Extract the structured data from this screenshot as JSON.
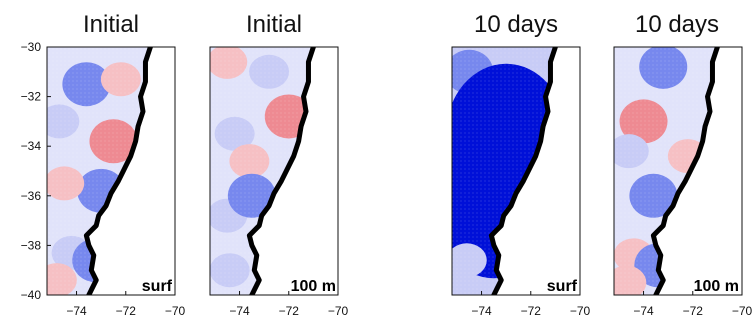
{
  "chart_data": [
    {
      "type": "heatmap",
      "title": "Initial",
      "corner_label": "surf",
      "x_ticks": [
        -74,
        -72,
        -70
      ],
      "y_ticks": [
        -30,
        -32,
        -34,
        -36,
        -38,
        -40
      ],
      "xlim": [
        -75.2,
        -70
      ],
      "ylim": [
        -40,
        -30
      ],
      "colors": {
        "strong_blue": "#0010d8",
        "mid_blue": "#7788ee",
        "light_blue": "#c8ccf6",
        "light_red": "#f6c0c4",
        "mid_red": "#ee8a92",
        "background": "#ffffff",
        "coastline": "#000000"
      },
      "anomaly_regions": [
        {
          "lon": -73.6,
          "lat": -31.5,
          "level": -2
        },
        {
          "lon": -74.7,
          "lat": -33.0,
          "level": -1
        },
        {
          "lon": -72.5,
          "lat": -33.8,
          "level": 2
        },
        {
          "lon": -72.2,
          "lat": -31.3,
          "level": 1
        },
        {
          "lon": -73.0,
          "lat": -35.8,
          "level": -2
        },
        {
          "lon": -74.5,
          "lat": -35.5,
          "level": 1
        },
        {
          "lon": -74.2,
          "lat": -38.3,
          "level": -1
        },
        {
          "lon": -74.8,
          "lat": -39.4,
          "level": 1
        },
        {
          "lon": -73.2,
          "lat": -38.6,
          "level": -2
        }
      ]
    },
    {
      "type": "heatmap",
      "title": "Initial",
      "corner_label": "100 m",
      "x_ticks": [
        -74,
        -72,
        -70
      ],
      "y_ticks": [
        -30,
        -32,
        -34,
        -36,
        -38,
        -40
      ],
      "xlim": [
        -75.2,
        -70
      ],
      "ylim": [
        -40,
        -30
      ],
      "colors": {
        "strong_blue": "#0010d8",
        "mid_blue": "#7788ee",
        "light_blue": "#c8ccf6",
        "light_red": "#f6c0c4",
        "mid_red": "#ee8a92",
        "background": "#ffffff",
        "coastline": "#000000"
      },
      "anomaly_regions": [
        {
          "lon": -74.5,
          "lat": -30.6,
          "level": 1
        },
        {
          "lon": -72.8,
          "lat": -31.0,
          "level": -1
        },
        {
          "lon": -72.0,
          "lat": -32.8,
          "level": 2
        },
        {
          "lon": -74.2,
          "lat": -33.5,
          "level": -1
        },
        {
          "lon": -73.6,
          "lat": -34.6,
          "level": 1
        },
        {
          "lon": -74.5,
          "lat": -36.8,
          "level": -1
        },
        {
          "lon": -73.5,
          "lat": -36.0,
          "level": -2
        },
        {
          "lon": -74.4,
          "lat": -39.0,
          "level": -1
        }
      ]
    },
    {
      "type": "heatmap",
      "title": "10 days",
      "corner_label": "surf",
      "x_ticks": [
        -74,
        -72,
        -70
      ],
      "y_ticks": [
        -30,
        -32,
        -34,
        -36,
        -38,
        -40
      ],
      "xlim": [
        -75.2,
        -70
      ],
      "ylim": [
        -40,
        -30
      ],
      "colors": {
        "strong_blue": "#0010d8",
        "mid_blue": "#7788ee",
        "light_blue": "#c8ccf6",
        "light_red": "#f6c0c4",
        "mid_red": "#ee8a92",
        "background": "#ffffff",
        "coastline": "#000000"
      },
      "anomaly_regions": [
        {
          "lon": -74.5,
          "lat": -31.0,
          "level": -2
        },
        {
          "lon": -73.0,
          "lat": -33.5,
          "level": -3
        },
        {
          "lon": -73.5,
          "lat": -36.5,
          "level": -3
        },
        {
          "lon": -74.6,
          "lat": -38.6,
          "level": -1
        }
      ]
    },
    {
      "type": "heatmap",
      "title": "10 days",
      "corner_label": "100 m",
      "x_ticks": [
        -74,
        -72,
        -70
      ],
      "y_ticks": [
        -30,
        -32,
        -34,
        -36,
        -38,
        -40
      ],
      "xlim": [
        -75.2,
        -70
      ],
      "ylim": [
        -40,
        -30
      ],
      "colors": {
        "strong_blue": "#0010d8",
        "mid_blue": "#7788ee",
        "light_blue": "#c8ccf6",
        "light_red": "#f6c0c4",
        "mid_red": "#ee8a92",
        "background": "#ffffff",
        "coastline": "#000000"
      },
      "anomaly_regions": [
        {
          "lon": -73.2,
          "lat": -30.8,
          "level": -2
        },
        {
          "lon": -74.0,
          "lat": -33.0,
          "level": 2
        },
        {
          "lon": -72.2,
          "lat": -34.4,
          "level": 1
        },
        {
          "lon": -74.6,
          "lat": -34.2,
          "level": -1
        },
        {
          "lon": -73.6,
          "lat": -36.0,
          "level": -2
        },
        {
          "lon": -74.4,
          "lat": -38.4,
          "level": 1
        },
        {
          "lon": -73.4,
          "lat": -38.8,
          "level": -2
        },
        {
          "lon": -74.7,
          "lat": -39.5,
          "level": 1
        }
      ]
    }
  ]
}
